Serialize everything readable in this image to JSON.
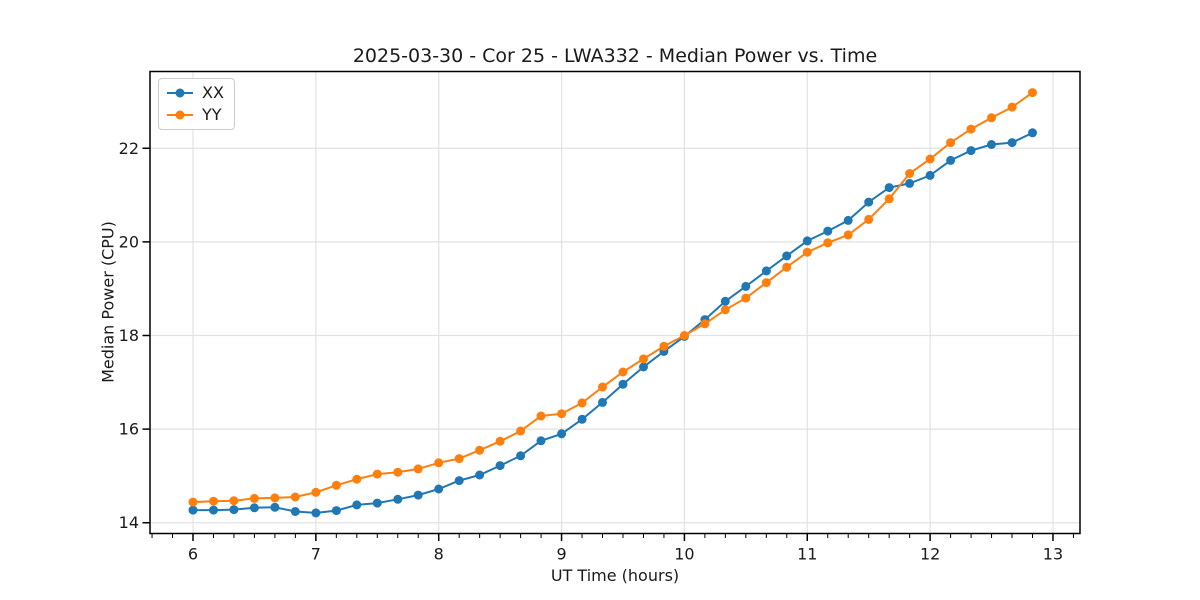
{
  "chart_data": {
    "type": "line",
    "title": "2025-03-30 - Cor 25 - LWA332 - Median Power vs. Time",
    "xlabel": "UT Time (hours)",
    "ylabel": "Median Power (CPU)",
    "xlim": [
      5.65,
      13.22
    ],
    "ylim": [
      13.77,
      23.64
    ],
    "x_ticks": [
      6,
      7,
      8,
      9,
      10,
      11,
      12,
      13
    ],
    "y_ticks": [
      14,
      16,
      18,
      20,
      22
    ],
    "x_minor_divisions_per_unit": 6,
    "grid": true,
    "legend_position": "upper-left",
    "grid_color": "#e2e2e2",
    "spine_color": "#000000",
    "x": [
      6,
      6.167,
      6.333,
      6.5,
      6.667,
      6.833,
      7,
      7.167,
      7.333,
      7.5,
      7.667,
      7.833,
      8,
      8.167,
      8.333,
      8.5,
      8.667,
      8.833,
      9,
      9.167,
      9.333,
      9.5,
      9.667,
      9.833,
      10,
      10.167,
      10.333,
      10.5,
      10.667,
      10.833,
      11,
      11.167,
      11.333,
      11.5,
      11.667,
      11.833,
      12,
      12.167,
      12.333,
      12.5,
      12.667,
      12.833
    ],
    "series": [
      {
        "name": "XX",
        "color": "#1f77b4",
        "values": [
          14.27,
          14.27,
          14.28,
          14.32,
          14.33,
          14.24,
          14.21,
          14.26,
          14.38,
          14.42,
          14.5,
          14.59,
          14.72,
          14.9,
          15.02,
          15.22,
          15.43,
          15.75,
          15.9,
          16.21,
          16.57,
          16.96,
          17.33,
          17.66,
          17.98,
          18.34,
          18.73,
          19.05,
          19.38,
          19.7,
          20.02,
          20.23,
          20.46,
          20.85,
          21.16,
          21.25,
          21.42,
          21.74,
          21.95,
          22.08,
          22.12,
          22.33
        ]
      },
      {
        "name": "YY",
        "color": "#ff7f0e",
        "values": [
          14.44,
          14.46,
          14.47,
          14.52,
          14.53,
          14.55,
          14.65,
          14.8,
          14.93,
          15.04,
          15.08,
          15.15,
          15.28,
          15.37,
          15.55,
          15.74,
          15.96,
          16.28,
          16.33,
          16.56,
          16.9,
          17.22,
          17.5,
          17.77,
          18.0,
          18.25,
          18.55,
          18.8,
          19.13,
          19.46,
          19.78,
          19.98,
          20.15,
          20.48,
          20.92,
          21.46,
          21.77,
          22.12,
          22.41,
          22.65,
          22.88,
          23.19
        ]
      }
    ]
  }
}
